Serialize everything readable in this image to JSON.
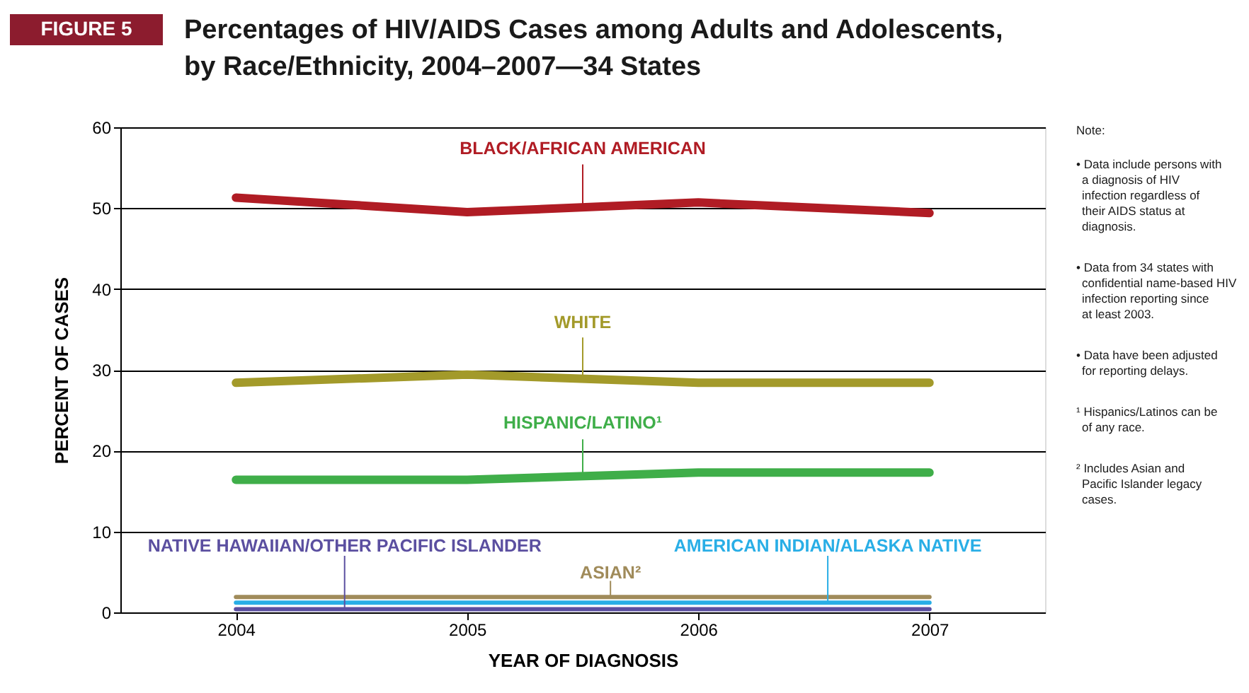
{
  "chart_data": {
    "type": "line",
    "title": "Percentages of HIV/AIDS Cases among Adults and Adolescents, by Race/Ethnicity, 2004–2007—34 States",
    "xlabel": "YEAR OF DIAGNOSIS",
    "ylabel": "PERCENT OF CASES",
    "x": [
      2004,
      2005,
      2006,
      2007
    ],
    "series": [
      {
        "name": "BLACK/AFRICAN AMERICAN",
        "color": "#b01c24",
        "values": [
          51.3,
          49.5,
          50.7,
          49.4
        ]
      },
      {
        "name": "WHITE",
        "color": "#a39a2a",
        "values": [
          28.4,
          29.4,
          28.4,
          28.4
        ]
      },
      {
        "name": "HISPANIC/LATINO¹",
        "color": "#3fae49",
        "values": [
          16.4,
          16.4,
          17.3,
          17.3
        ]
      },
      {
        "name": "NATIVE HAWAIIAN/OTHER PACIFIC ISLANDER",
        "color": "#5b4fa0",
        "values": [
          0.4,
          0.4,
          0.4,
          0.4
        ]
      },
      {
        "name": "ASIAN²",
        "color": "#a08b5a",
        "values": [
          1.9,
          1.9,
          1.9,
          1.9
        ]
      },
      {
        "name": "AMERICAN INDIAN/ALASKA NATIVE",
        "color": "#29aee6",
        "values": [
          1.2,
          1.2,
          1.2,
          1.2
        ]
      }
    ],
    "xlim": [
      2003.5,
      2007.5
    ],
    "xticks": [
      2004,
      2005,
      2006,
      2007
    ],
    "ylim": [
      0,
      60
    ],
    "yticks": [
      0,
      10,
      20,
      30,
      40,
      50,
      60
    ],
    "grid": "y",
    "legend": false,
    "line_style": "solid",
    "marker": "none",
    "annotations": [
      "FIGURE 5",
      "Note:",
      "• Data include persons with a diagnosis of HIV infection regardless of their AIDS status at diagnosis.",
      "• Data from 34 states with confidential name-based HIV infection reporting since at least 2003.",
      "• Data have been adjusted for reporting delays.",
      "¹ Hispanics/Latinos can be of any race.",
      "² Includes Asian and Pacific Islander legacy cases."
    ]
  }
}
